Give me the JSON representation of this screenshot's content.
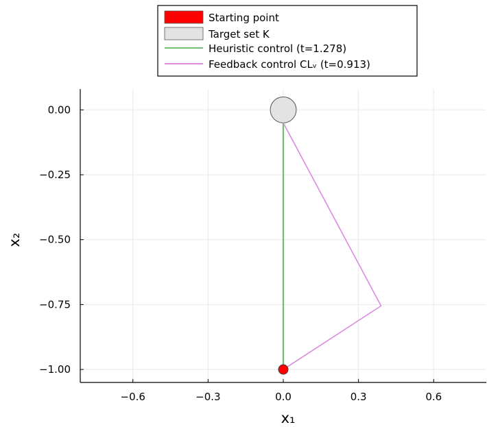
{
  "chart_data": {
    "type": "line",
    "title": "",
    "xlabel": "x₁",
    "ylabel": "x₂",
    "xlim": [
      -0.81,
      0.81
    ],
    "ylim": [
      -1.05,
      0.08
    ],
    "x_ticks": [
      -0.6,
      -0.3,
      0.0,
      0.3,
      0.6
    ],
    "x_tick_labels": [
      "−0.6",
      "−0.3",
      "0.0",
      "0.3",
      "0.6"
    ],
    "y_ticks": [
      0.0,
      -0.25,
      -0.5,
      -0.75,
      -1.0
    ],
    "y_tick_labels": [
      "0.00",
      "−0.25",
      "−0.50",
      "−0.75",
      "−1.00"
    ],
    "grid": true,
    "legend_position": "top-center (outside)",
    "target_set": {
      "name": "Target set K",
      "center": [
        0.0,
        0.0
      ],
      "radius": 0.05,
      "color": "#e3e3e3"
    },
    "start_point": {
      "name": "Starting point",
      "x": 0.0,
      "y": -1.0,
      "color": "#ff0000"
    },
    "series": [
      {
        "name": "Heuristic control (t=1.278)",
        "color": "#6fbf73",
        "x": [
          0.0,
          0.0
        ],
        "y": [
          -1.0,
          -0.05
        ]
      },
      {
        "name": "Feedback control CLᵥ (t=0.913)",
        "color": "#d98be0",
        "x": [
          0.0,
          0.39,
          0.0
        ],
        "y": [
          -1.0,
          -0.755,
          -0.05
        ]
      }
    ]
  }
}
